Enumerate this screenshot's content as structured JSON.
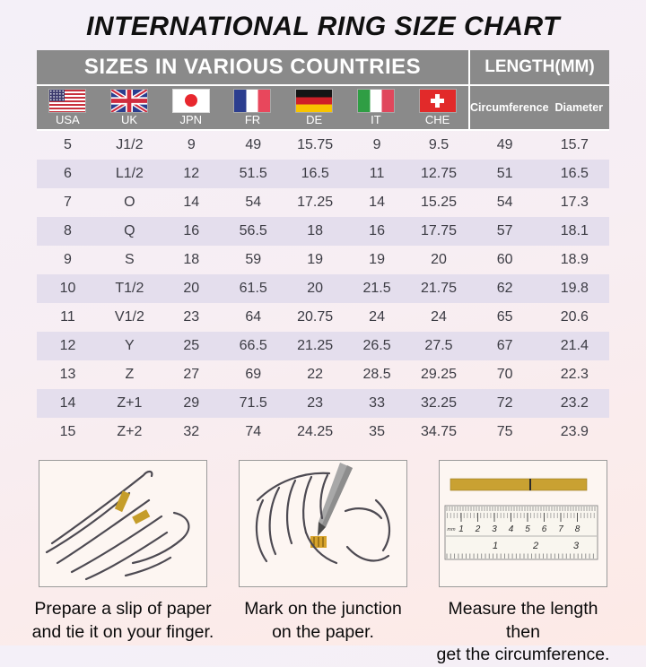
{
  "page": {
    "title": "INTERNATIONAL RING SIZE CHART"
  },
  "table": {
    "sizes_header": "SIZES IN VARIOUS COUNTRIES",
    "length_header": "LENGTH(MM)",
    "countries": [
      {
        "code": "USA",
        "flag_icon": "usa-flag-icon"
      },
      {
        "code": "UK",
        "flag_icon": "uk-flag-icon"
      },
      {
        "code": "JPN",
        "flag_icon": "jpn-flag-icon"
      },
      {
        "code": "FR",
        "flag_icon": "fr-flag-icon"
      },
      {
        "code": "DE",
        "flag_icon": "de-flag-icon"
      },
      {
        "code": "IT",
        "flag_icon": "it-flag-icon"
      },
      {
        "code": "CHE",
        "flag_icon": "che-flag-icon"
      }
    ],
    "length_columns": [
      "Circumference",
      "Diameter"
    ]
  },
  "chart_data": {
    "type": "table",
    "title": "INTERNATIONAL RING SIZE CHART",
    "column_groups": [
      {
        "label": "SIZES IN VARIOUS COUNTRIES",
        "span": 7
      },
      {
        "label": "LENGTH(MM)",
        "span": 2
      }
    ],
    "columns": [
      "USA",
      "UK",
      "JPN",
      "FR",
      "DE",
      "IT",
      "CHE",
      "Circumference",
      "Diameter"
    ],
    "rows": [
      [
        "5",
        "J1/2",
        "9",
        "49",
        "15.75",
        "9",
        "9.5",
        "49",
        "15.7"
      ],
      [
        "6",
        "L1/2",
        "12",
        "51.5",
        "16.5",
        "11",
        "12.75",
        "51",
        "16.5"
      ],
      [
        "7",
        "O",
        "14",
        "54",
        "17.25",
        "14",
        "15.25",
        "54",
        "17.3"
      ],
      [
        "8",
        "Q",
        "16",
        "56.5",
        "18",
        "16",
        "17.75",
        "57",
        "18.1"
      ],
      [
        "9",
        "S",
        "18",
        "59",
        "19",
        "19",
        "20",
        "60",
        "18.9"
      ],
      [
        "10",
        "T1/2",
        "20",
        "61.5",
        "20",
        "21.5",
        "21.75",
        "62",
        "19.8"
      ],
      [
        "11",
        "V1/2",
        "23",
        "64",
        "20.75",
        "24",
        "24",
        "65",
        "20.6"
      ],
      [
        "12",
        "Y",
        "25",
        "66.5",
        "21.25",
        "26.5",
        "27.5",
        "67",
        "21.4"
      ],
      [
        "13",
        "Z",
        "27",
        "69",
        "22",
        "28.5",
        "29.25",
        "70",
        "22.3"
      ],
      [
        "14",
        "Z+1",
        "29",
        "71.5",
        "23",
        "33",
        "32.25",
        "72",
        "23.2"
      ],
      [
        "15",
        "Z+2",
        "32",
        "74",
        "24.25",
        "35",
        "34.75",
        "75",
        "23.9"
      ]
    ]
  },
  "instructions": [
    {
      "illustration": "hand-with-paper-strip",
      "lines": [
        "Prepare a slip of paper",
        "and tie it on your finger."
      ]
    },
    {
      "illustration": "hand-marking-pen",
      "lines": [
        "Mark on the junction",
        "on the paper."
      ]
    },
    {
      "illustration": "ruler-with-paper-strip",
      "lines": [
        "Measure the length then",
        "get the circumference."
      ],
      "ruler_unit": "mm",
      "ruler_top_scale": [
        "1",
        "2",
        "3",
        "4",
        "5",
        "6",
        "7",
        "8"
      ],
      "ruler_bottom_scale": [
        "1",
        "2",
        "3"
      ]
    }
  ],
  "colors": {
    "header_bg": "#8a8a8a",
    "header_text": "#ffffff",
    "stripe_bg": "#e4deed",
    "body_text": "#3c3c44",
    "page_gradient_top": "#f4f0f8",
    "page_gradient_bottom": "#fdeae6",
    "paper_strip_gold": "#c9a132"
  }
}
